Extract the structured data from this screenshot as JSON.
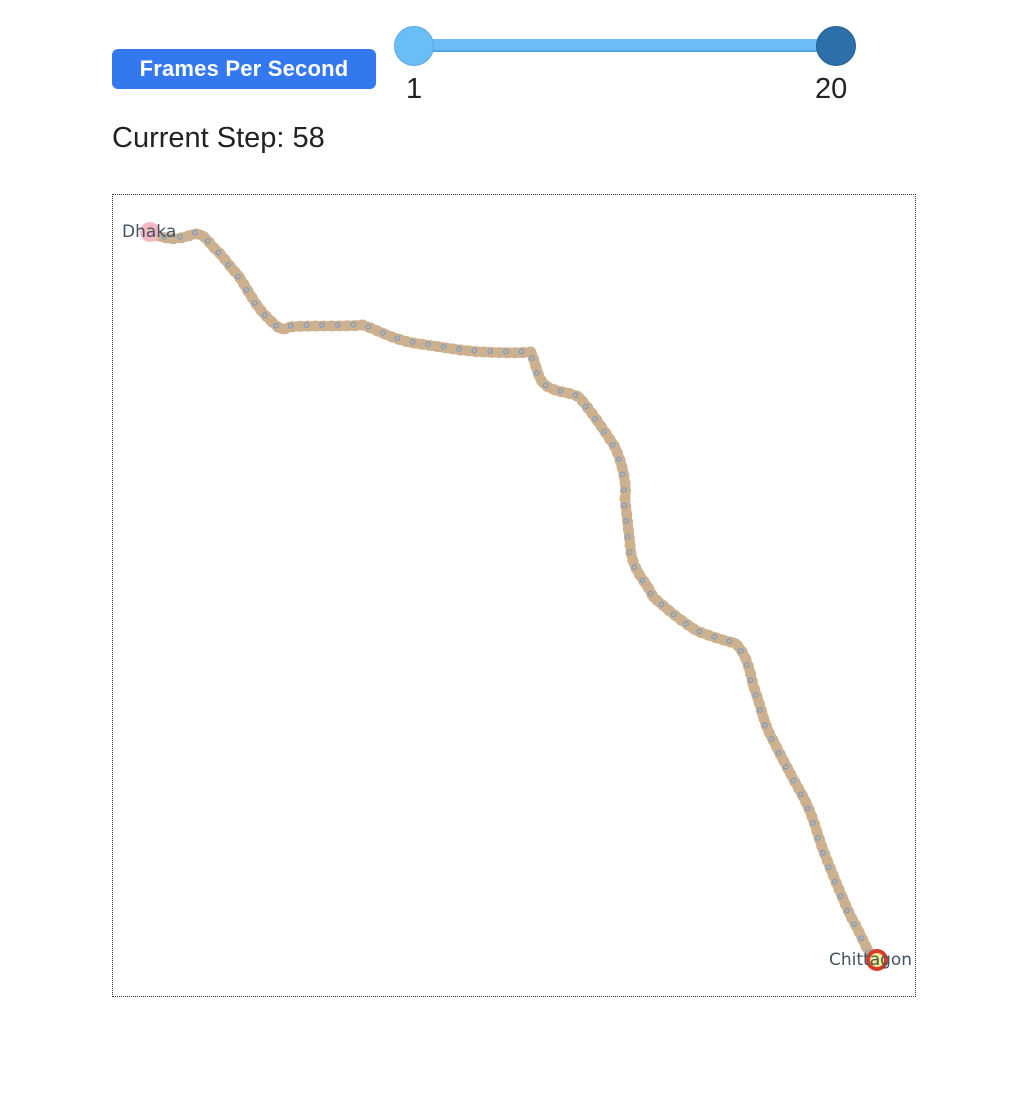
{
  "controls": {
    "fps_label": "Frames Per Second",
    "fps_min_label": "1",
    "fps_max_label": "20",
    "fps_range": [
      1,
      20
    ],
    "fps_selected": [
      1,
      20
    ]
  },
  "status": {
    "current_step_text": "Current Step: 58",
    "current_step": 58
  },
  "map": {
    "start_city": "Dhaka",
    "end_city": "Chittagon",
    "route_color": "#cdb08d",
    "sample_color": "#6f9bd3",
    "start_marker_color": "#f4b6c0",
    "end_marker_outline": "#d83a2a",
    "end_marker_fill": "#f3ee8a"
  }
}
